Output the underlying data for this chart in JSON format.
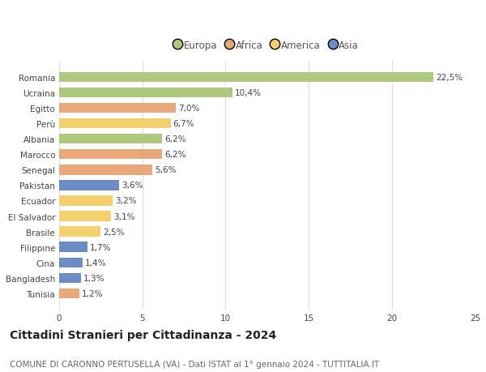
{
  "countries": [
    "Romania",
    "Ucraina",
    "Egitto",
    "Perù",
    "Albania",
    "Marocco",
    "Senegal",
    "Pakistan",
    "Ecuador",
    "El Salvador",
    "Brasile",
    "Filippine",
    "Cina",
    "Bangladesh",
    "Tunisia"
  ],
  "values": [
    22.5,
    10.4,
    7.0,
    6.7,
    6.2,
    6.2,
    5.6,
    3.6,
    3.2,
    3.1,
    2.5,
    1.7,
    1.4,
    1.3,
    1.2
  ],
  "labels": [
    "22,5%",
    "10,4%",
    "7,0%",
    "6,7%",
    "6,2%",
    "6,2%",
    "5,6%",
    "3,6%",
    "3,2%",
    "3,1%",
    "2,5%",
    "1,7%",
    "1,4%",
    "1,3%",
    "1,2%"
  ],
  "colors": [
    "#aec97e",
    "#aec97e",
    "#e8a87c",
    "#f5d06e",
    "#aec97e",
    "#e8a87c",
    "#e8a87c",
    "#6b8dc4",
    "#f5d06e",
    "#f5d06e",
    "#f5d06e",
    "#6b8dc4",
    "#6b8dc4",
    "#6b8dc4",
    "#e8a87c"
  ],
  "legend_labels": [
    "Europa",
    "Africa",
    "America",
    "Asia"
  ],
  "legend_colors": [
    "#aec97e",
    "#e8a87c",
    "#f5d06e",
    "#6b8dc4"
  ],
  "title": "Cittadini Stranieri per Cittadinanza - 2024",
  "subtitle": "COMUNE DI CARONNO PERTUSELLA (VA) - Dati ISTAT al 1° gennaio 2024 - TUTTITALIA.IT",
  "xlim": [
    0,
    25
  ],
  "xticks": [
    0,
    5,
    10,
    15,
    20,
    25
  ],
  "background_color": "#ffffff",
  "grid_color": "#dddddd",
  "bar_height": 0.65,
  "label_fontsize": 7.5,
  "tick_fontsize": 7.5,
  "title_fontsize": 10,
  "subtitle_fontsize": 7.5,
  "legend_fontsize": 8.5
}
